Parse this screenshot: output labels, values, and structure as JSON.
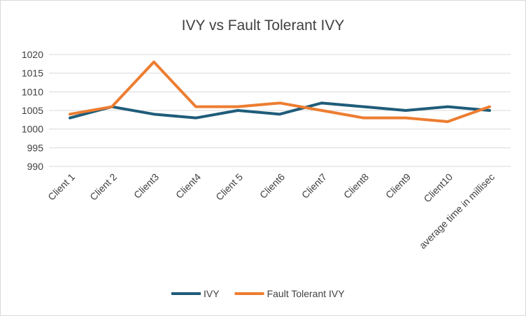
{
  "chart_data": {
    "type": "line",
    "title": "IVY vs  Fault Tolerant IVY",
    "categories": [
      "Client 1",
      "Client 2",
      "Client3",
      "Client4",
      "Client 5",
      "Client6",
      "Client7",
      "Client8",
      "Client9",
      "Client10",
      "average time in millisec"
    ],
    "series": [
      {
        "name": "IVY",
        "color": "#1f5c7a",
        "values": [
          1003,
          1006,
          1004,
          1003,
          1005,
          1004,
          1007,
          1006,
          1005,
          1006,
          1005
        ]
      },
      {
        "name": "Fault Tolerant IVY",
        "color": "#ed7d31",
        "values": [
          1004,
          1006,
          1018,
          1006,
          1006,
          1007,
          1005,
          1003,
          1003,
          1002,
          1006
        ]
      }
    ],
    "ylim": [
      990,
      1020
    ],
    "yticks": [
      990,
      995,
      1000,
      1005,
      1010,
      1015,
      1020
    ],
    "grid": true,
    "legend_position": "bottom"
  }
}
